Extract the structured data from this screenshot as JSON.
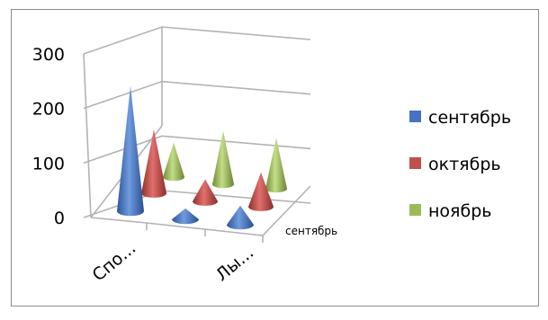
{
  "chart_data": {
    "type": "bar",
    "subtype": "3d-cone",
    "categories": [
      "Спо...",
      "",
      "Лы..."
    ],
    "series": [
      {
        "name": "сентябрь",
        "color": "#4472C4",
        "values": [
          230,
          20,
          35
        ]
      },
      {
        "name": "октябрь",
        "color": "#C0504D",
        "values": [
          130,
          45,
          70
        ]
      },
      {
        "name": "ноябрь",
        "color": "#9BBB59",
        "values": [
          75,
          115,
          110
        ]
      }
    ],
    "ylim": [
      0,
      300
    ],
    "yticks": [
      "0",
      "100",
      "200",
      "300"
    ],
    "depth_axis_label": "сентябрь",
    "legend_position": "right",
    "grid": true
  }
}
